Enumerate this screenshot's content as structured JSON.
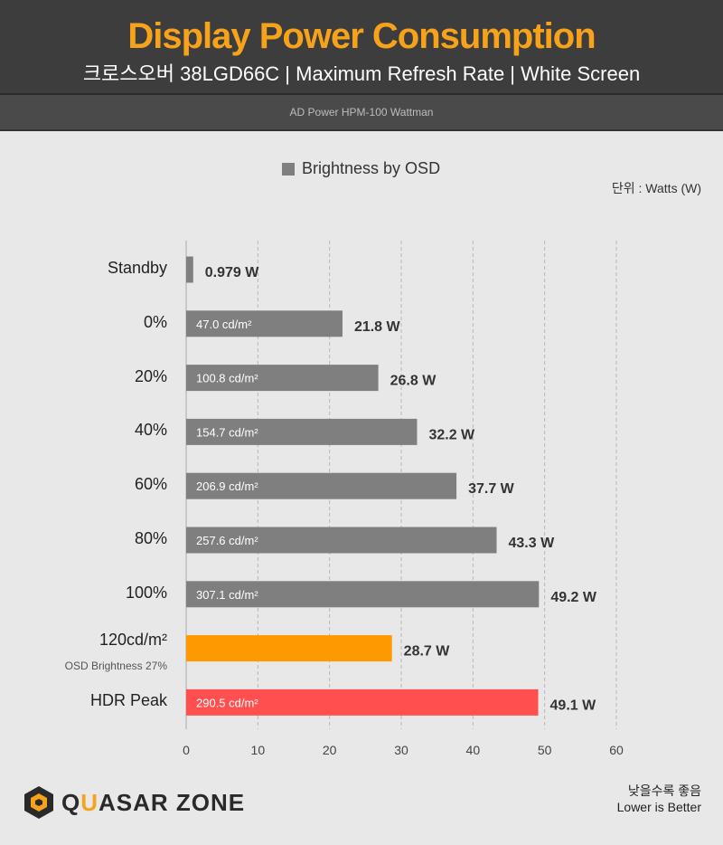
{
  "header": {
    "title": "Display Power Consumption",
    "subtitle": "크로스오버 38LGD66C  |  Maximum Refresh Rate  |  White Screen",
    "source": "AD Power HPM-100 Wattman"
  },
  "colors": {
    "title": "#f7a21b",
    "gray": "#7f7f7f",
    "orange": "#ff9900",
    "red": "#ff4f4f"
  },
  "legend": {
    "label": "Brightness by OSD",
    "color": "#7f7f7f"
  },
  "unit_label": "단위 : Watts (W)",
  "chart_data": {
    "type": "bar",
    "orientation": "horizontal",
    "xlim": [
      0,
      60
    ],
    "xticks": [
      0,
      10,
      20,
      30,
      40,
      50,
      60
    ],
    "grid": true,
    "legend_position": "top-center",
    "categories": [
      "Standby",
      "0%",
      "20%",
      "40%",
      "60%",
      "80%",
      "100%",
      "120cd/m²",
      "HDR Peak"
    ],
    "category_sublabels": [
      "",
      "",
      "",
      "",
      "",
      "",
      "",
      "OSD Brightness 27%",
      ""
    ],
    "values": [
      0.979,
      21.8,
      26.8,
      32.2,
      37.7,
      43.3,
      49.2,
      28.7,
      49.1
    ],
    "value_labels": [
      "0.979 W",
      "21.8 W",
      "26.8 W",
      "32.2 W",
      "37.7 W",
      "43.3 W",
      "49.2 W",
      "28.7 W",
      "49.1 W"
    ],
    "inner_labels": [
      "",
      "47.0 cd/m²",
      "100.8 cd/m²",
      "154.7 cd/m²",
      "206.9 cd/m²",
      "257.6 cd/m²",
      "307.1 cd/m²",
      "",
      "290.5 cd/m²"
    ],
    "bar_colors": [
      "#7f7f7f",
      "#7f7f7f",
      "#7f7f7f",
      "#7f7f7f",
      "#7f7f7f",
      "#7f7f7f",
      "#7f7f7f",
      "#ff9900",
      "#ff4f4f"
    ]
  },
  "footer": {
    "note_ko": "낮을수록 좋음",
    "note_en": "Lower is Better",
    "logo_text": "QUASAR ZONE",
    "logo_text_a": "Q",
    "logo_text_b": "U",
    "logo_text_c": "ASAR ZONE"
  }
}
